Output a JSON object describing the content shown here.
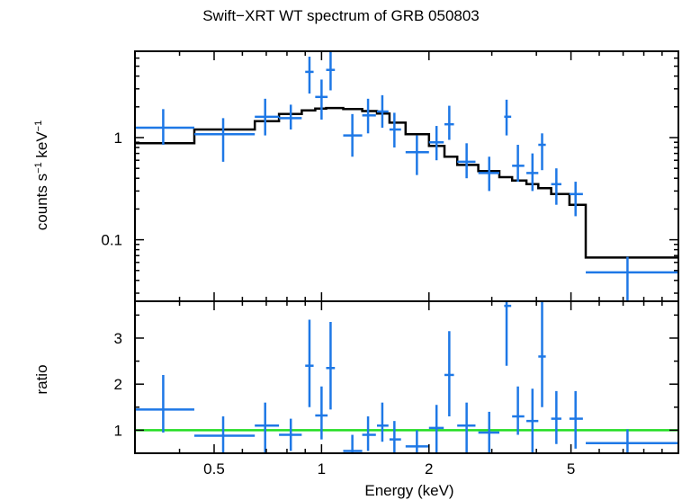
{
  "chart_data": [
    {
      "type": "scatter",
      "panel": "spectrum",
      "title": "Swift−XRT WT spectrum of GRB 050803",
      "ylabel_main": "counts s",
      "ylabel_sup1": "−1",
      "ylabel_mid": " keV",
      "ylabel_sup2": "−1",
      "xscale": "log",
      "yscale": "log",
      "xlim": [
        0.3,
        10
      ],
      "ylim": [
        0.025,
        7
      ],
      "yticks": [
        {
          "value": 1,
          "label": "1"
        },
        {
          "value": 0.1,
          "label": "0.1"
        }
      ],
      "series": [
        {
          "kind": "data",
          "color": "#1e78e6",
          "points": [
            {
              "x": 0.36,
              "xlo": 0.3,
              "xhi": 0.44,
              "y": 1.25,
              "ylo": 0.85,
              "yhi": 1.9
            },
            {
              "x": 0.53,
              "xlo": 0.44,
              "xhi": 0.65,
              "y": 1.08,
              "ylo": 0.58,
              "yhi": 1.55
            },
            {
              "x": 0.695,
              "xlo": 0.65,
              "xhi": 0.76,
              "y": 1.6,
              "ylo": 1.05,
              "yhi": 2.4
            },
            {
              "x": 0.82,
              "xlo": 0.76,
              "xhi": 0.88,
              "y": 1.55,
              "ylo": 1.2,
              "yhi": 2.1
            },
            {
              "x": 0.925,
              "xlo": 0.9,
              "xhi": 0.95,
              "y": 4.4,
              "ylo": 2.7,
              "yhi": 6.2
            },
            {
              "x": 1.0,
              "xlo": 0.96,
              "xhi": 1.04,
              "y": 2.5,
              "ylo": 1.5,
              "yhi": 3.7
            },
            {
              "x": 1.06,
              "xlo": 1.03,
              "xhi": 1.09,
              "y": 4.6,
              "ylo": 2.9,
              "yhi": 7.0
            },
            {
              "x": 1.22,
              "xlo": 1.15,
              "xhi": 1.3,
              "y": 1.05,
              "ylo": 0.65,
              "yhi": 1.7
            },
            {
              "x": 1.35,
              "xlo": 1.3,
              "xhi": 1.42,
              "y": 1.65,
              "ylo": 1.1,
              "yhi": 2.4
            },
            {
              "x": 1.48,
              "xlo": 1.43,
              "xhi": 1.54,
              "y": 1.8,
              "ylo": 1.25,
              "yhi": 2.6
            },
            {
              "x": 1.6,
              "xlo": 1.55,
              "xhi": 1.67,
              "y": 1.2,
              "ylo": 0.8,
              "yhi": 1.75
            },
            {
              "x": 1.85,
              "xlo": 1.72,
              "xhi": 2.0,
              "y": 0.72,
              "ylo": 0.43,
              "yhi": 1.05
            },
            {
              "x": 2.1,
              "xlo": 2.0,
              "xhi": 2.2,
              "y": 0.9,
              "ylo": 0.6,
              "yhi": 1.3
            },
            {
              "x": 2.28,
              "xlo": 2.21,
              "xhi": 2.35,
              "y": 1.35,
              "ylo": 0.95,
              "yhi": 2.05
            },
            {
              "x": 2.55,
              "xlo": 2.4,
              "xhi": 2.7,
              "y": 0.58,
              "ylo": 0.4,
              "yhi": 0.88
            },
            {
              "x": 2.95,
              "xlo": 2.75,
              "xhi": 3.15,
              "y": 0.45,
              "ylo": 0.3,
              "yhi": 0.65
            },
            {
              "x": 3.3,
              "xlo": 3.25,
              "xhi": 3.4,
              "y": 1.6,
              "ylo": 1.05,
              "yhi": 2.35
            },
            {
              "x": 3.55,
              "xlo": 3.42,
              "xhi": 3.7,
              "y": 0.53,
              "ylo": 0.37,
              "yhi": 0.85
            },
            {
              "x": 3.9,
              "xlo": 3.75,
              "xhi": 4.05,
              "y": 0.45,
              "ylo": 0.3,
              "yhi": 0.7
            },
            {
              "x": 4.15,
              "xlo": 4.05,
              "xhi": 4.25,
              "y": 0.85,
              "ylo": 0.48,
              "yhi": 1.1
            },
            {
              "x": 4.55,
              "xlo": 4.4,
              "xhi": 4.7,
              "y": 0.35,
              "ylo": 0.22,
              "yhi": 0.5
            },
            {
              "x": 5.15,
              "xlo": 4.95,
              "xhi": 5.4,
              "y": 0.28,
              "ylo": 0.17,
              "yhi": 0.37
            },
            {
              "x": 7.2,
              "xlo": 5.5,
              "xhi": 10,
              "y": 0.048,
              "ylo": 0.025,
              "yhi": 0.068
            }
          ]
        },
        {
          "kind": "model",
          "color": "#000000",
          "steps": [
            {
              "x0": 0.3,
              "x1": 0.44,
              "y": 0.88
            },
            {
              "x0": 0.44,
              "x1": 0.65,
              "y": 1.2
            },
            {
              "x0": 0.65,
              "x1": 0.76,
              "y": 1.45
            },
            {
              "x0": 0.76,
              "x1": 0.88,
              "y": 1.7
            },
            {
              "x0": 0.88,
              "x1": 0.96,
              "y": 1.85
            },
            {
              "x0": 0.96,
              "x1": 1.03,
              "y": 1.92
            },
            {
              "x0": 1.03,
              "x1": 1.15,
              "y": 1.95
            },
            {
              "x0": 1.15,
              "x1": 1.3,
              "y": 1.9
            },
            {
              "x0": 1.3,
              "x1": 1.43,
              "y": 1.82
            },
            {
              "x0": 1.43,
              "x1": 1.55,
              "y": 1.72
            },
            {
              "x0": 1.55,
              "x1": 1.72,
              "y": 1.4
            },
            {
              "x0": 1.72,
              "x1": 2.0,
              "y": 1.08
            },
            {
              "x0": 2.0,
              "x1": 2.21,
              "y": 0.83
            },
            {
              "x0": 2.21,
              "x1": 2.4,
              "y": 0.65
            },
            {
              "x0": 2.4,
              "x1": 2.75,
              "y": 0.54
            },
            {
              "x0": 2.75,
              "x1": 3.15,
              "y": 0.47
            },
            {
              "x0": 3.15,
              "x1": 3.42,
              "y": 0.41
            },
            {
              "x0": 3.42,
              "x1": 3.75,
              "y": 0.38
            },
            {
              "x0": 3.75,
              "x1": 4.05,
              "y": 0.35
            },
            {
              "x0": 4.05,
              "x1": 4.4,
              "y": 0.32
            },
            {
              "x0": 4.4,
              "x1": 4.95,
              "y": 0.28
            },
            {
              "x0": 4.95,
              "x1": 5.5,
              "y": 0.22
            },
            {
              "x0": 5.5,
              "x1": 10,
              "y": 0.067
            }
          ]
        }
      ]
    },
    {
      "type": "scatter",
      "panel": "ratio",
      "xlabel": "Energy (keV)",
      "ylabel": "ratio",
      "xscale": "log",
      "yscale": "linear",
      "xlim": [
        0.3,
        10
      ],
      "ylim": [
        0.5,
        3.8
      ],
      "reference_line": {
        "y": 1,
        "color": "#22dd22"
      },
      "xticks": [
        {
          "value": 0.5,
          "label": "0.5"
        },
        {
          "value": 1,
          "label": "1"
        },
        {
          "value": 2,
          "label": "2"
        },
        {
          "value": 5,
          "label": "5"
        }
      ],
      "yticks": [
        {
          "value": 1,
          "label": "1"
        },
        {
          "value": 2,
          "label": "2"
        },
        {
          "value": 3,
          "label": "3"
        }
      ],
      "series": [
        {
          "kind": "data",
          "color": "#1e78e6",
          "points": [
            {
              "x": 0.36,
              "xlo": 0.3,
              "xhi": 0.44,
              "y": 1.45,
              "ylo": 0.95,
              "yhi": 2.2
            },
            {
              "x": 0.53,
              "xlo": 0.44,
              "xhi": 0.65,
              "y": 0.88,
              "ylo": 0.5,
              "yhi": 1.3
            },
            {
              "x": 0.695,
              "xlo": 0.65,
              "xhi": 0.76,
              "y": 1.1,
              "ylo": 0.5,
              "yhi": 1.6
            },
            {
              "x": 0.82,
              "xlo": 0.76,
              "xhi": 0.88,
              "y": 0.9,
              "ylo": 0.55,
              "yhi": 1.25
            },
            {
              "x": 0.925,
              "xlo": 0.9,
              "xhi": 0.95,
              "y": 2.4,
              "ylo": 1.5,
              "yhi": 3.4
            },
            {
              "x": 1.0,
              "xlo": 0.96,
              "xhi": 1.04,
              "y": 1.32,
              "ylo": 0.8,
              "yhi": 1.95
            },
            {
              "x": 1.06,
              "xlo": 1.03,
              "xhi": 1.09,
              "y": 2.35,
              "ylo": 1.45,
              "yhi": 3.35
            },
            {
              "x": 1.22,
              "xlo": 1.15,
              "xhi": 1.3,
              "y": 0.55,
              "ylo": 0.5,
              "yhi": 0.9
            },
            {
              "x": 1.35,
              "xlo": 1.3,
              "xhi": 1.42,
              "y": 0.9,
              "ylo": 0.55,
              "yhi": 1.3
            },
            {
              "x": 1.48,
              "xlo": 1.43,
              "xhi": 1.54,
              "y": 1.1,
              "ylo": 0.75,
              "yhi": 1.6
            },
            {
              "x": 1.6,
              "xlo": 1.55,
              "xhi": 1.67,
              "y": 0.8,
              "ylo": 0.5,
              "yhi": 1.2
            },
            {
              "x": 1.85,
              "xlo": 1.72,
              "xhi": 2.0,
              "y": 0.65,
              "ylo": 0.5,
              "yhi": 1.0
            },
            {
              "x": 2.1,
              "xlo": 2.0,
              "xhi": 2.2,
              "y": 1.05,
              "ylo": 0.5,
              "yhi": 1.55
            },
            {
              "x": 2.28,
              "xlo": 2.21,
              "xhi": 2.35,
              "y": 2.2,
              "ylo": 1.3,
              "yhi": 3.15
            },
            {
              "x": 2.55,
              "xlo": 2.4,
              "xhi": 2.7,
              "y": 1.1,
              "ylo": 0.5,
              "yhi": 1.6
            },
            {
              "x": 2.95,
              "xlo": 2.75,
              "xhi": 3.15,
              "y": 0.95,
              "ylo": 0.5,
              "yhi": 1.4
            },
            {
              "x": 3.3,
              "xlo": 3.25,
              "xhi": 3.4,
              "y": 3.7,
              "ylo": 2.4,
              "yhi": 3.8
            },
            {
              "x": 3.55,
              "xlo": 3.42,
              "xhi": 3.7,
              "y": 1.3,
              "ylo": 0.9,
              "yhi": 1.95
            },
            {
              "x": 3.9,
              "xlo": 3.75,
              "xhi": 4.05,
              "y": 1.2,
              "ylo": 0.5,
              "yhi": 1.9
            },
            {
              "x": 4.15,
              "xlo": 4.05,
              "xhi": 4.25,
              "y": 2.6,
              "ylo": 1.5,
              "yhi": 3.8
            },
            {
              "x": 4.55,
              "xlo": 4.4,
              "xhi": 4.7,
              "y": 1.25,
              "ylo": 0.7,
              "yhi": 1.85
            },
            {
              "x": 5.15,
              "xlo": 4.95,
              "xhi": 5.4,
              "y": 1.25,
              "ylo": 0.6,
              "yhi": 1.85
            },
            {
              "x": 7.2,
              "xlo": 5.5,
              "xhi": 10,
              "y": 0.72,
              "ylo": 0.5,
              "yhi": 1.02
            }
          ]
        }
      ]
    }
  ]
}
